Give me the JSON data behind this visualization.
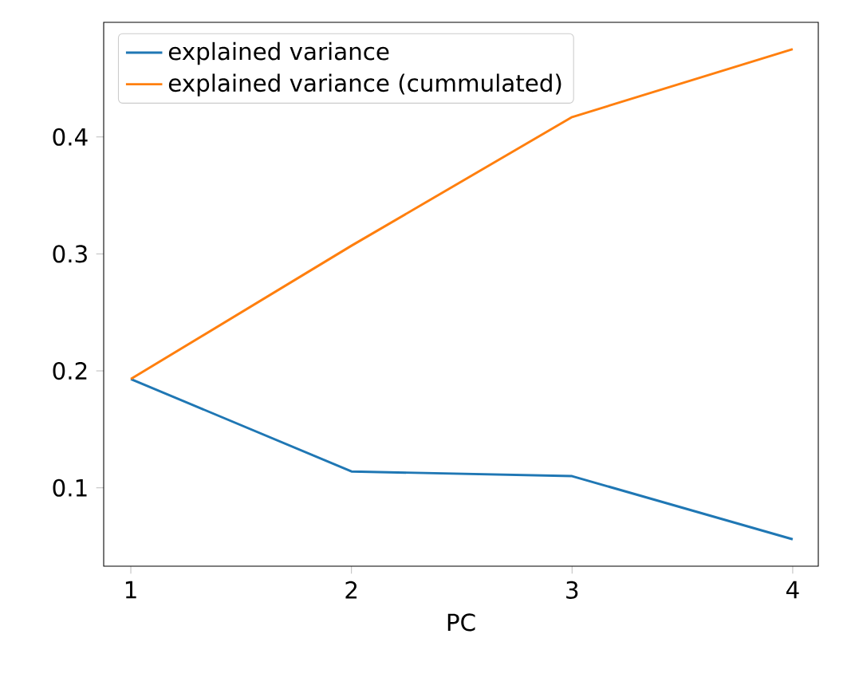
{
  "chart_data": {
    "type": "line",
    "xlabel": "PC",
    "x": [
      1,
      2,
      3,
      4
    ],
    "series": [
      {
        "name": "explained variance",
        "color": "#1f77b4",
        "values": [
          0.193,
          0.114,
          0.11,
          0.056
        ]
      },
      {
        "name": "explained variance (cummulated)",
        "color": "#ff7f0e",
        "values": [
          0.193,
          0.307,
          0.417,
          0.475
        ]
      }
    ],
    "xlim": [
      0.877,
      4.116
    ],
    "ylim": [
      0.033,
      0.498
    ],
    "xticks": [
      1,
      2,
      3,
      4
    ],
    "yticks": [
      0.1,
      0.2,
      0.3,
      0.4
    ],
    "legend": "top left",
    "grid": false,
    "marker": "none",
    "line_style": "solid"
  }
}
